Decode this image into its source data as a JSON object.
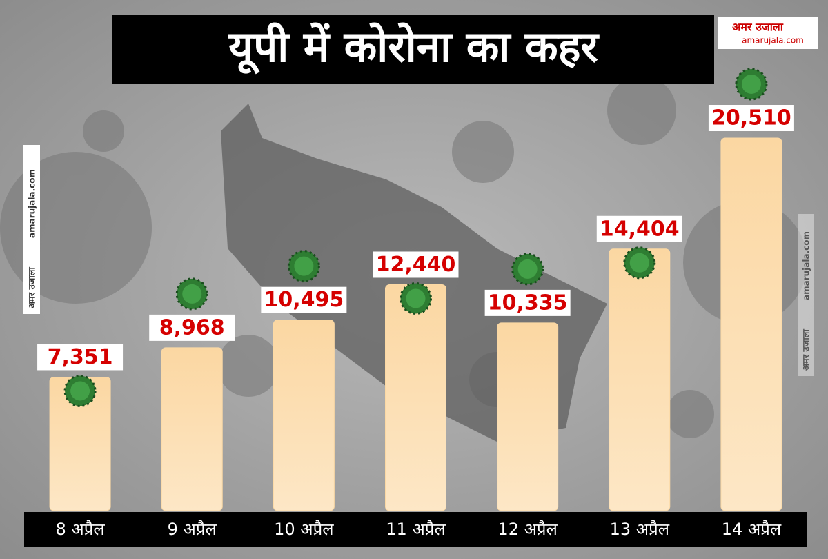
{
  "chart_data": {
    "type": "bar",
    "title": "यूपी में कोरोना का कहर",
    "categories": [
      "8 अप्रैल",
      "9 अप्रैल",
      "10 अप्रैल",
      "11 अप्रैल",
      "12 अप्रैल",
      "13 अप्रैल",
      "14 अप्रैल"
    ],
    "values": [
      7351,
      8968,
      10495,
      12440,
      10335,
      14404,
      20510
    ],
    "value_labels": [
      "7,351",
      "8,968",
      "10,495",
      "12,440",
      "10,335",
      "14,404",
      "20,510"
    ],
    "color": "#fcd9a4"
  },
  "branding": {
    "name": "अमर उजाला",
    "site": "amarujala.com"
  }
}
